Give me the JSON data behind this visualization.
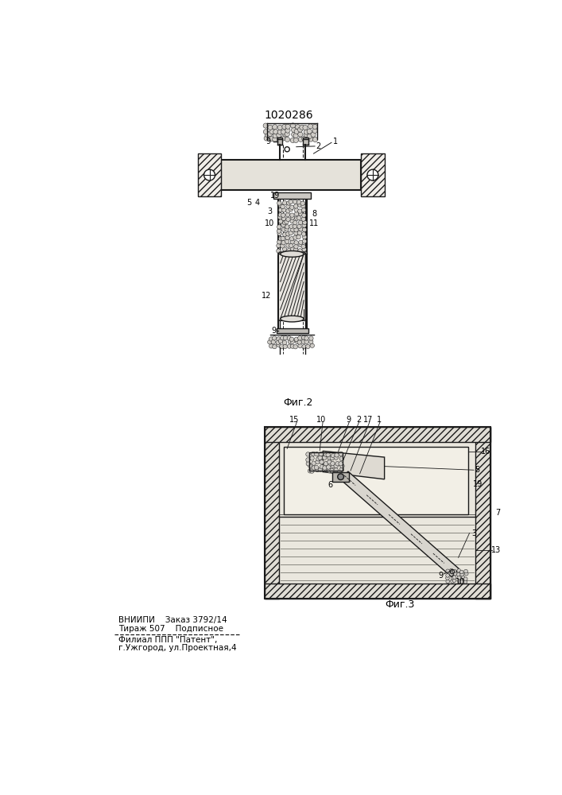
{
  "title": "1020286",
  "fig2_caption": "Фиг.2",
  "fig3_caption": "Фиг.3",
  "bottom_text_line1": "ВНИИПИ    Заказ 3792/14",
  "bottom_text_line2": "Тираж 507    Подписное",
  "bottom_text_line3": "Филиал ППП \"Патент\",",
  "bottom_text_line4": "г.Ужгород, ул.Проектная,4",
  "line_color": "#1a1a1a",
  "fig_width": 7.07,
  "fig_height": 10.0
}
